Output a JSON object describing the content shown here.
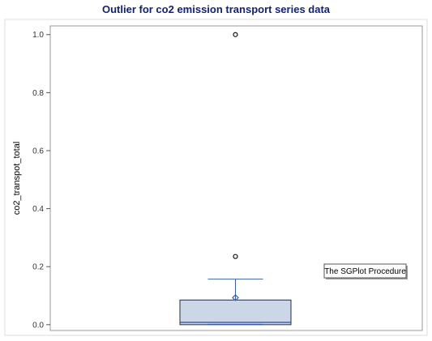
{
  "chart_data": {
    "type": "box",
    "title": "Outlier for co2 emission transport series data",
    "xlabel": "",
    "ylabel": "co2_transpot_total",
    "ylim": [
      -0.02,
      1.03
    ],
    "yticks": [
      "0.0",
      "0.2",
      "0.4",
      "0.6",
      "0.8",
      "1.0"
    ],
    "ytick_values": [
      0.0,
      0.2,
      0.4,
      0.6,
      0.8,
      1.0
    ],
    "box": {
      "min": 0.0,
      "q1": 0.0,
      "median": 0.008,
      "mean": 0.093,
      "q3": 0.085,
      "upper_whisker": 0.157
    },
    "outliers": [
      0.235,
      1.0
    ],
    "colors": {
      "box_fill": "#cbd6e6",
      "box_stroke": "#1f2d4a",
      "whisker": "#3f5fa6",
      "median": "#2a4fa0",
      "title": "#112277"
    }
  },
  "tooltip": {
    "text": "The SGPlot Procedure"
  }
}
